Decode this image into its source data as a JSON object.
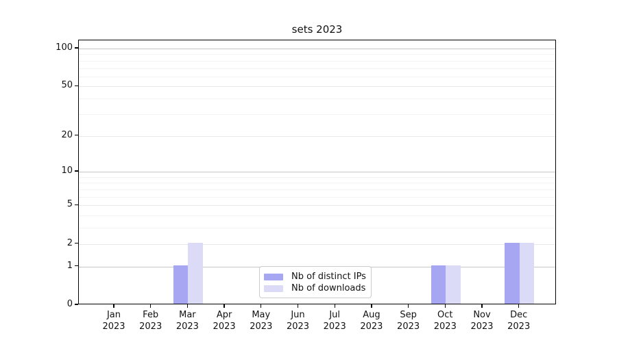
{
  "chart_data": {
    "type": "bar",
    "title": "sets 2023",
    "categories": [
      "Jan\n2023",
      "Feb\n2023",
      "Mar\n2023",
      "Apr\n2023",
      "May\n2023",
      "Jun\n2023",
      "Jul\n2023",
      "Aug\n2023",
      "Sep\n2023",
      "Oct\n2023",
      "Nov\n2023",
      "Dec\n2023"
    ],
    "series": [
      {
        "name": "Nb of distinct IPs",
        "color": "#a6a6f2",
        "values": [
          0,
          0,
          1,
          0,
          0,
          0,
          0,
          0,
          0,
          1,
          0,
          2
        ]
      },
      {
        "name": "Nb of downloads",
        "color": "#dbdbf8",
        "values": [
          0,
          0,
          2,
          0,
          0,
          0,
          0,
          0,
          0,
          1,
          0,
          2
        ]
      }
    ],
    "xlabel": "",
    "ylabel": "",
    "yscale": "log1p",
    "ylim": [
      0,
      116
    ],
    "yticks_labeled": [
      0,
      1,
      2,
      5,
      10,
      20,
      50,
      100
    ],
    "yticks_major": [
      1,
      10,
      100
    ],
    "yticks_minor": [
      3,
      4,
      6,
      7,
      8,
      9,
      30,
      40,
      60,
      70,
      80,
      90
    ],
    "grid": "on",
    "legend_position": "lower center"
  }
}
